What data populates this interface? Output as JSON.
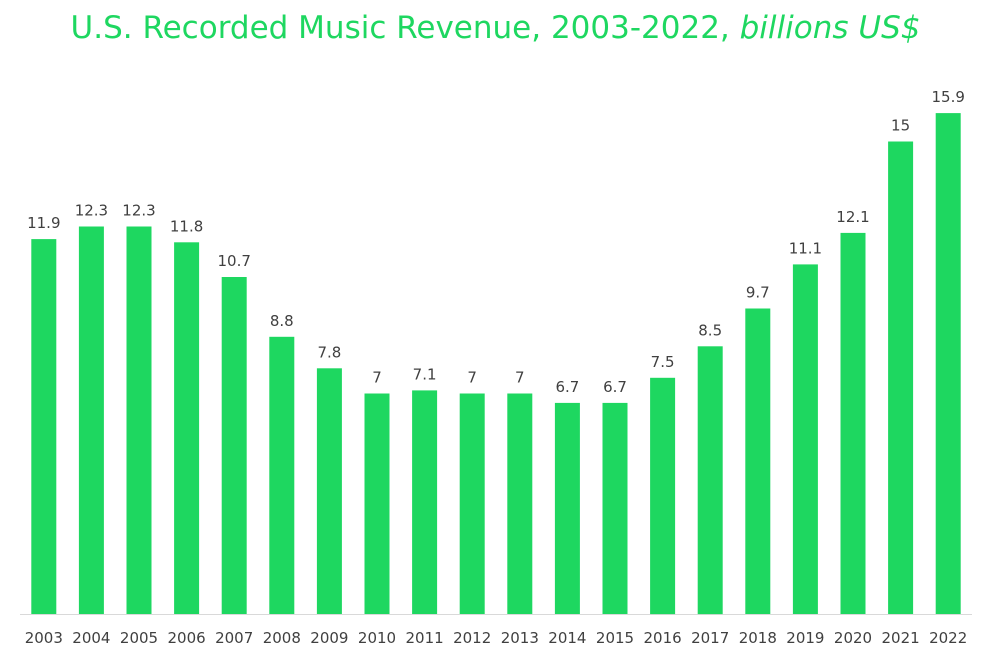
{
  "chart_data": {
    "type": "bar",
    "title": "U.S. Recorded Music Revenue, 2003-2022,",
    "subtitle": "billions US$",
    "categories": [
      "2003",
      "2004",
      "2005",
      "2006",
      "2007",
      "2008",
      "2009",
      "2010",
      "2011",
      "2012",
      "2013",
      "2014",
      "2015",
      "2016",
      "2017",
      "2018",
      "2019",
      "2020",
      "2021",
      "2022"
    ],
    "values": [
      11.9,
      12.3,
      12.3,
      11.8,
      10.7,
      8.8,
      7.8,
      7,
      7.1,
      7,
      7,
      6.7,
      6.7,
      7.5,
      8.5,
      9.7,
      11.1,
      12.1,
      15,
      15.9
    ],
    "data_labels": [
      "11.9",
      "12.3",
      "12.3",
      "11.8",
      "10.7",
      "8.8",
      "7.8",
      "7",
      "7.1",
      "7",
      "7",
      "6.7",
      "6.7",
      "7.5",
      "8.5",
      "9.7",
      "11.1",
      "12.1",
      "15",
      "15.9"
    ],
    "ylim": [
      0,
      16
    ],
    "grid": false,
    "legend": "none",
    "bar_color": "#1ed760",
    "title_color": "#1ed760",
    "label_color": "#404040",
    "axis_color": "#d9d9d9"
  }
}
